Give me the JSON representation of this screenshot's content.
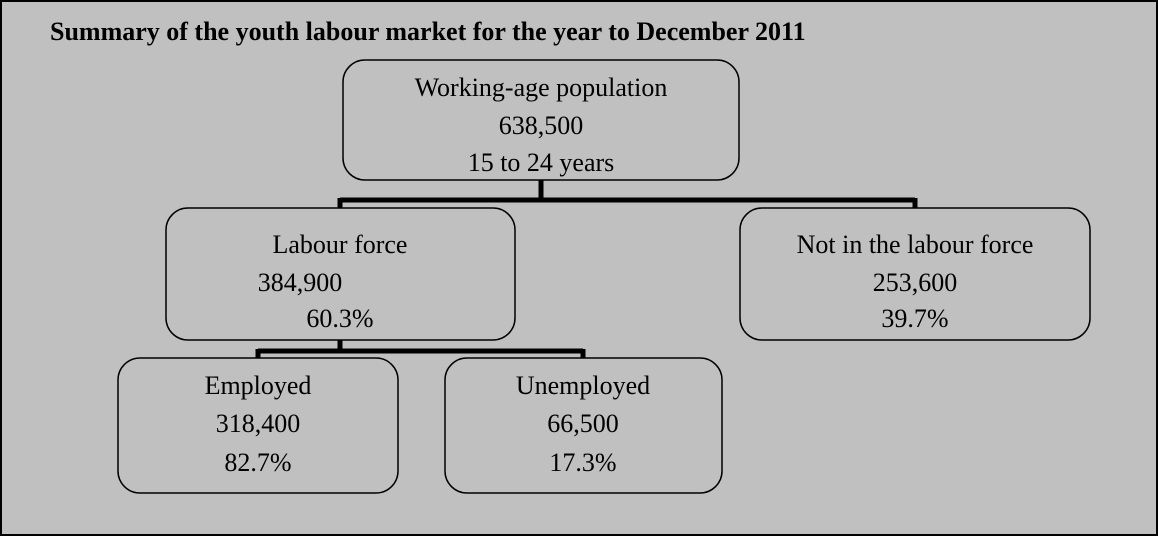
{
  "title": "Summary of the youth labour market for the year to December 2011",
  "nodes": [
    {
      "label": "Working-age population",
      "value": "638,500",
      "note": "15 to 24 years"
    },
    {
      "label": "Labour force",
      "value": "384,900",
      "note": "60.3%"
    },
    {
      "label": "Not in the labour force",
      "value": "253,600",
      "note": "39.7%"
    },
    {
      "label": "Employed",
      "value": "318,400",
      "note": "82.7%"
    },
    {
      "label": "Unemployed",
      "value": "66,500",
      "note": "17.3%"
    }
  ]
}
